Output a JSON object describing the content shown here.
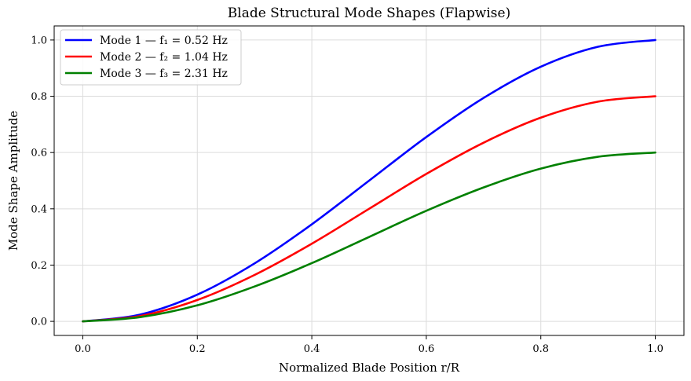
{
  "chart_data": {
    "type": "line",
    "title": "Blade Structural Mode Shapes (Flapwise)",
    "xlabel": "Normalized Blade Position r/R",
    "ylabel": "Mode Shape Amplitude",
    "xlim": [
      -0.05,
      1.05
    ],
    "ylim": [
      -0.05,
      1.05
    ],
    "xticks": [
      "0.0",
      "0.2",
      "0.4",
      "0.6",
      "0.8",
      "1.0"
    ],
    "xtick_values": [
      0.0,
      0.2,
      0.4,
      0.6,
      0.8,
      1.0
    ],
    "yticks": [
      "0.0",
      "0.2",
      "0.4",
      "0.6",
      "0.8",
      "1.0"
    ],
    "ytick_values": [
      0.0,
      0.2,
      0.4,
      0.6,
      0.8,
      1.0
    ],
    "grid": true,
    "legend_position": "top-left",
    "x": [
      0.0,
      0.1,
      0.2,
      0.3,
      0.4,
      0.5,
      0.6,
      0.7,
      0.8,
      0.9,
      1.0
    ],
    "series": [
      {
        "name": "Mode 1 — f₁ = 0.52 Hz",
        "color": "#0000ff",
        "values": [
          0.0,
          0.024,
          0.095,
          0.206,
          0.345,
          0.5,
          0.655,
          0.794,
          0.905,
          0.976,
          1.0
        ]
      },
      {
        "name": "Mode 2 — f₂ = 1.04 Hz",
        "color": "#ff0000",
        "values": [
          0.0,
          0.019,
          0.076,
          0.165,
          0.276,
          0.4,
          0.524,
          0.635,
          0.724,
          0.781,
          0.8
        ]
      },
      {
        "name": "Mode 3 — f₃ = 2.31 Hz",
        "color": "#008000",
        "values": [
          0.0,
          0.015,
          0.057,
          0.124,
          0.207,
          0.3,
          0.393,
          0.476,
          0.543,
          0.585,
          0.6
        ]
      }
    ]
  }
}
